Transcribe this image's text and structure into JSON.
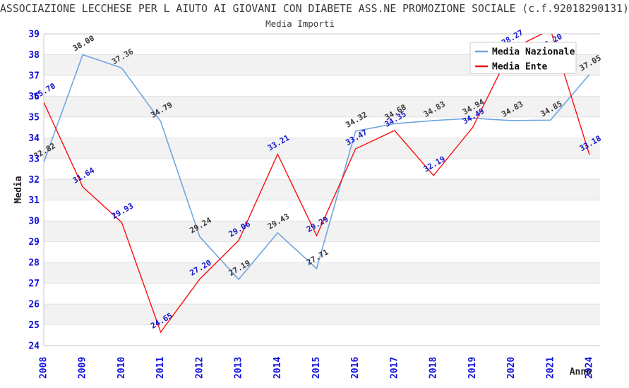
{
  "title": "ASSOCIAZIONE LECCHESE PER L AIUTO AI GIOVANI CON DIABETE ASS.NE PROMOZIONE SOCIALE (c.f.92018290131)",
  "subtitle": "Media Importi",
  "colors": {
    "line_nazionale": "#6EA6DF",
    "line_ente": "#FB0D0D",
    "tick_label_blue": "#1010DD",
    "point_label_nazionale": "#3A3A3A",
    "point_label_ente": "#1313CE",
    "band_gray": "#F2F2F2",
    "gridline": "#E2E2E2",
    "frame": "#C9C9C9",
    "legend_bg": "#FFFFFF",
    "legend_border": "#CCCCCC",
    "legend_text": "#111111"
  },
  "legend": {
    "entries": [
      {
        "label": "Media Nazionale",
        "color": "#6EA6DF"
      },
      {
        "label": "Media Ente",
        "color": "#FB0D0D"
      }
    ],
    "position": "upper-right"
  },
  "chart_data": {
    "type": "line",
    "title": "Media Importi",
    "xlabel": "Anno",
    "ylabel": "Media",
    "categories": [
      "2008",
      "2009",
      "2010",
      "2011",
      "2012",
      "2013",
      "2014",
      "2015",
      "2016",
      "2017",
      "2018",
      "2019",
      "2020",
      "2021",
      "2024"
    ],
    "series": [
      {
        "name": "Media Nazionale",
        "color": "#6EA6DF",
        "label_color": "#3A3A3A",
        "values": [
          32.82,
          38.0,
          37.36,
          34.79,
          29.24,
          27.19,
          29.43,
          27.71,
          34.32,
          34.68,
          34.83,
          34.94,
          34.83,
          34.85,
          37.05
        ]
      },
      {
        "name": "Media Ente",
        "color": "#FB0D0D",
        "label_color": "#1313CE",
        "values": [
          35.7,
          31.64,
          29.93,
          24.65,
          27.2,
          29.06,
          33.21,
          29.29,
          33.47,
          34.35,
          32.19,
          34.49,
          38.27,
          39.2,
          33.18
        ]
      }
    ],
    "ylim": [
      24,
      39
    ],
    "ytick_step": 1,
    "grid": "horizontal gridlines with alternating gray bands",
    "xtick_rotation": 90,
    "data_label_rotation": 30,
    "legend_position": "upper-right"
  }
}
